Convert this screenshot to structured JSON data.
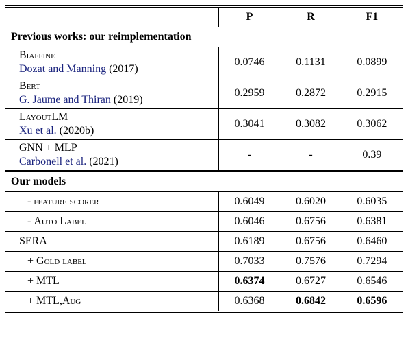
{
  "header": {
    "p": "P",
    "r": "R",
    "f1": "F1"
  },
  "sections": {
    "prev": "Previous works: our reimplementation",
    "ours": "Our models"
  },
  "rows": {
    "biaffine": {
      "name": "Biaffine",
      "cite": "Dozat and Manning",
      "year": "(2017)",
      "p": "0.0746",
      "r": "0.1131",
      "f1": "0.0899"
    },
    "bert": {
      "name": "Bert",
      "cite": "G. Jaume and Thiran",
      "year": "(2019)",
      "p": "0.2959",
      "r": "0.2872",
      "f1": "0.2915"
    },
    "layoutlm": {
      "name": "LayoutLM",
      "cite": "Xu et al.",
      "year": "(2020b)",
      "p": "0.3041",
      "r": "0.3082",
      "f1": "0.3062"
    },
    "gnn": {
      "name": "GNN + MLP",
      "cite": "Carbonell et al.",
      "year": "(2021)",
      "p": "-",
      "r": "-",
      "f1": "0.39"
    },
    "feat": {
      "name": "- feature scorer",
      "p": "0.6049",
      "r": "0.6020",
      "f1": "0.6035"
    },
    "auto": {
      "name_pre": "- ",
      "name_sc": "Auto Label",
      "p": "0.6046",
      "r": "0.6756",
      "f1": "0.6381"
    },
    "sera": {
      "name": "SERA",
      "p": "0.6189",
      "r": "0.6756",
      "f1": "0.6460"
    },
    "gold": {
      "name_pre": "+ ",
      "name_sc": "Gold label",
      "p": "0.7033",
      "r": "0.7576",
      "f1": "0.7294"
    },
    "mtl": {
      "name_pre": "+ ",
      "name_sc": "MTL",
      "p": "0.6374",
      "p_bold": true,
      "r": "0.6727",
      "f1": "0.6546"
    },
    "mtlaug": {
      "name_pre": "+ ",
      "name_sc": "MTL",
      "name_post": ",",
      "name_sc2": "Aug",
      "p": "0.6368",
      "r": "0.6842",
      "r_bold": true,
      "f1": "0.6596",
      "f1_bold": true
    }
  }
}
